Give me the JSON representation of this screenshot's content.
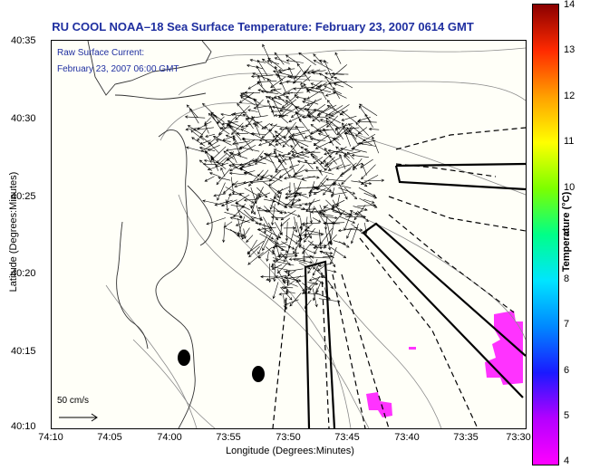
{
  "title": "RU COOL  NOAA–18  Sea Surface Temperature:  February 23, 2007 0614 GMT",
  "legend": {
    "line1": "Raw Surface Current:",
    "line2": "February 23, 2007 06:00 GMT"
  },
  "scale": {
    "label": "50 cm/s"
  },
  "axes": {
    "xlabel": "Longitude (Degrees:Minutes)",
    "ylabel": "Latitude (Degrees:Minutes)",
    "xticks": [
      "74:10",
      "74:05",
      "74:00",
      "73:55",
      "73:50",
      "73:45",
      "73:40",
      "73:35",
      "73:30"
    ],
    "yticks": [
      "40:35",
      "40:30",
      "40:25",
      "40:20",
      "40:15",
      "40:10"
    ]
  },
  "colorbar": {
    "label": "Temperature (°C)",
    "ticks": [
      "14",
      "13",
      "12",
      "11",
      "10",
      "9",
      "8",
      "7",
      "6",
      "5",
      "4"
    ],
    "min": 4,
    "max": 14
  },
  "colors": {
    "title": "#1f2fa0",
    "sst_warm_patch": "#ff33ff",
    "land": "#fffff8",
    "contour": "#7a7a7a"
  }
}
